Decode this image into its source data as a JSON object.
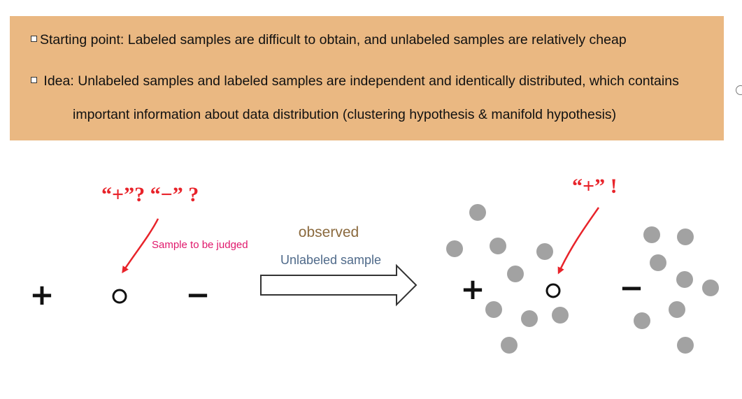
{
  "banner": {
    "line1": "Starting point: Labeled samples are difficult to obtain, and unlabeled samples are relatively cheap",
    "line2": " Idea: Unlabeled samples and labeled samples are independent and identically distributed, which contains",
    "line3": "important information about data distribution (clustering hypothesis & manifold hypothesis)",
    "bg_color": "#eab882"
  },
  "left_panel": {
    "question_label": "“+”? “−” ?",
    "sample_label": "Sample to be judged",
    "plus": "+",
    "minus": "−",
    "circle_symbol": "o"
  },
  "transition": {
    "observed_label": "observed",
    "unlabeled_label": "Unlabeled sample"
  },
  "right_panel": {
    "answer_label": "“+” !",
    "plus": "+",
    "minus": "−"
  },
  "colors": {
    "red": "#e8232a",
    "magenta": "#e0186c",
    "brown": "#8b6a3e",
    "slate": "#4f6a8a",
    "dot_gray": "#a2a2a2"
  }
}
